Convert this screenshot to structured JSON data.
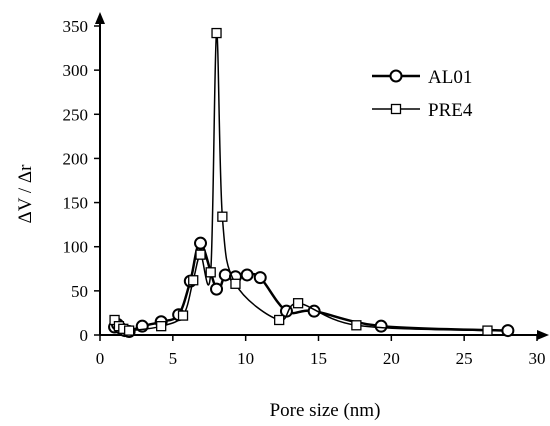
{
  "chart_data": {
    "type": "line",
    "xlabel": "Pore size (nm)",
    "ylabel": "ΔV / Δr",
    "xlim": [
      0,
      30
    ],
    "ylim": [
      0,
      350
    ],
    "x_ticks": [
      "0",
      "5",
      "10",
      "15",
      "20",
      "25",
      "30"
    ],
    "y_ticks": [
      "0",
      "50",
      "100",
      "150",
      "200",
      "250",
      "300",
      "350"
    ],
    "legend_position": "top-right",
    "grid": false,
    "series": [
      {
        "name": "AL01",
        "marker": "circle",
        "points": [
          [
            1.0,
            9
          ],
          [
            1.2,
            12
          ],
          [
            1.4,
            8
          ],
          [
            1.7,
            5
          ],
          [
            2.0,
            4
          ],
          [
            2.9,
            10
          ],
          [
            4.2,
            15
          ],
          [
            5.4,
            23
          ],
          [
            6.2,
            61
          ],
          [
            6.9,
            104
          ],
          [
            8.0,
            52
          ],
          [
            8.6,
            68
          ],
          [
            9.3,
            66
          ],
          [
            10.1,
            68
          ],
          [
            11.0,
            65
          ],
          [
            12.8,
            27
          ],
          [
            14.7,
            27
          ],
          [
            19.3,
            10
          ],
          [
            28.0,
            5
          ]
        ]
      },
      {
        "name": "PRE4",
        "marker": "square",
        "points": [
          [
            1.0,
            17
          ],
          [
            1.3,
            10
          ],
          [
            1.6,
            7
          ],
          [
            2.0,
            5
          ],
          [
            4.2,
            10
          ],
          [
            5.7,
            22
          ],
          [
            6.4,
            62
          ],
          [
            6.9,
            91
          ],
          [
            7.6,
            71
          ],
          [
            8.0,
            342
          ],
          [
            8.4,
            134
          ],
          [
            9.3,
            58
          ],
          [
            12.3,
            17
          ],
          [
            13.6,
            36
          ],
          [
            17.6,
            11
          ],
          [
            26.6,
            5
          ]
        ]
      }
    ]
  }
}
